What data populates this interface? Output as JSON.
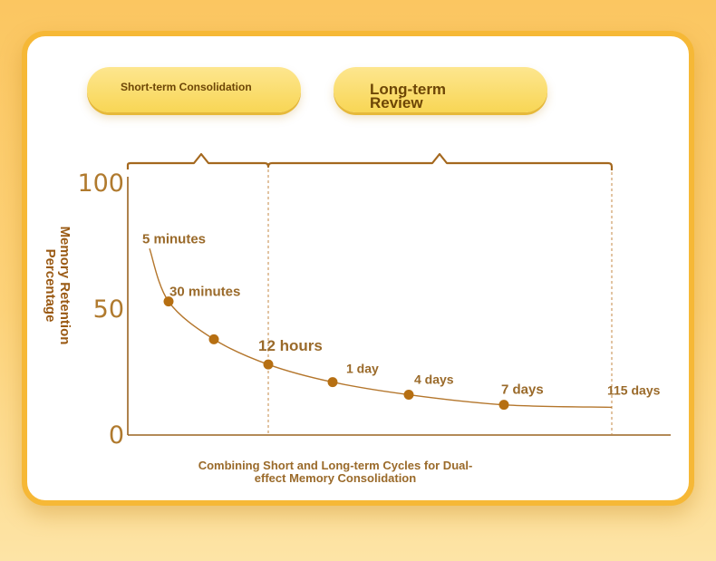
{
  "phases": {
    "short_label": "Short-term Consolidation",
    "long_label": "Long-term Review"
  },
  "caption": "Combining Short and Long-term Cycles for Dual-effect Memory Consolidation",
  "colors": {
    "accent": "#f6b836",
    "text_brown": "#9a6a2a",
    "point": "#b66f12",
    "curve": "#b4762c"
  },
  "chart_data": {
    "type": "line",
    "title": "",
    "xlabel": "",
    "ylabel": "Memory Retention Percentage",
    "ylim": [
      0,
      100
    ],
    "yticks": [
      0,
      50,
      100
    ],
    "grid": false,
    "x_scale": "irregular (points spaced along review intervals)",
    "points": [
      {
        "label": "5 minutes",
        "y": 74,
        "marker": false
      },
      {
        "label": "30 minutes",
        "y": 53,
        "marker": true
      },
      {
        "label": "",
        "y": 38,
        "marker": true
      },
      {
        "label": "12 hours",
        "y": 28,
        "marker": true
      },
      {
        "label": "1 day",
        "y": 21,
        "marker": true
      },
      {
        "label": "4 days",
        "y": 16,
        "marker": true
      },
      {
        "label": "7 days",
        "y": 12,
        "marker": true
      },
      {
        "label": "115 days",
        "y": 11,
        "marker": false
      }
    ]
  }
}
